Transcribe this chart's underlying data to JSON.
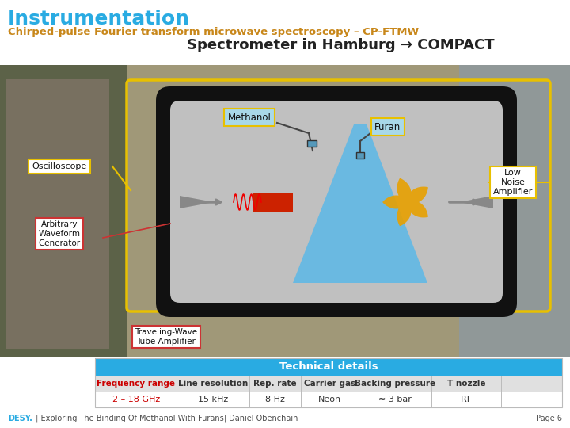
{
  "title": "Instrumentation",
  "subtitle": "Chirped-pulse Fourier transform microwave spectroscopy – CP-FTMW",
  "spectrometer_title": "Spectrometer in Hamburg → COMPACT",
  "title_color": "#29ABE2",
  "subtitle_color": "#C8871A",
  "spectrometer_title_color": "#222222",
  "bg_color": "#FFFFFF",
  "labels": {
    "methanol": "Methanol",
    "furan": "Furan",
    "oscilloscope": "Oscilloscope",
    "low_noise_amp": "Low\nNoise\nAmplifier",
    "arb_waveform": "Arbitrary\nWaveform\nGenerator",
    "traveling_wave": "Traveling-Wave\nTube Amplifier"
  },
  "table_header": "Technical details",
  "table_header_bg": "#29ABE2",
  "table_header_color": "#FFFFFF",
  "table_columns": [
    "Frequency range",
    "Line resolution",
    "Rep. rate",
    "Carrier gas",
    "Backing pressure",
    "T nozzle"
  ],
  "table_values": [
    "2 – 18 GHz",
    "15 kHz",
    "8 Hz",
    "Neon",
    "≈ 3 bar",
    "RT"
  ],
  "table_col1_color": "#CC0000",
  "footer_desy": "DESY.",
  "footer_rest": " | Exploring The Binding Of Methanol With Furans| Daniel Obenchain",
  "footer_right": "Page 6",
  "footer_color_desy": "#29ABE2",
  "footer_color_rest": "#4A4A4A",
  "photo_bg": "#7A8A7A",
  "photo_left_bg": "#6A7A5A",
  "photo_right_bg": "#8A9A8A",
  "chamber_bg": "#B0B0B0",
  "chamber_inner": "#C8C8C8",
  "chamber_border": "#222222",
  "yellow_border_color": "#E8C000",
  "oscilloscope_border": "#E8C000",
  "arb_border": "#CC3333",
  "traveling_border": "#CC3333",
  "low_noise_border": "#E8C000",
  "methanol_bg": "#A8D8E8",
  "furan_bg": "#A8D8E8"
}
